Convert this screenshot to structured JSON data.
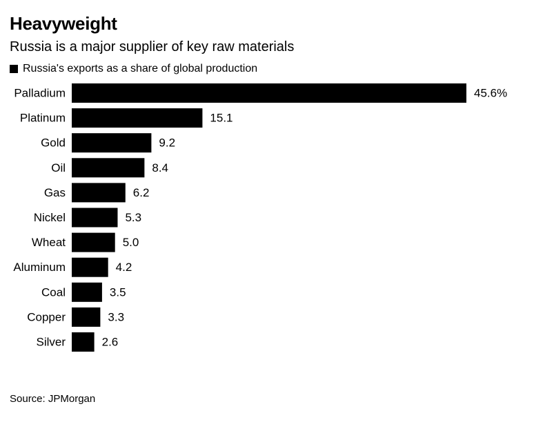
{
  "header": {
    "title": "Heavyweight",
    "subtitle": "Russia is a major supplier of key raw materials"
  },
  "footer": {
    "source": "Source: JPMorgan"
  },
  "colors": {
    "bar": "#000000",
    "text": "#000000",
    "background": "#ffffff"
  },
  "chart_data": {
    "type": "bar",
    "orientation": "horizontal",
    "title": "Heavyweight",
    "subtitle": "Russia is a major supplier of key raw materials",
    "xlabel": "",
    "ylabel": "",
    "xlim": [
      0,
      45.6
    ],
    "grid": false,
    "legend_position": "top-left",
    "categories": [
      "Palladium",
      "Platinum",
      "Gold",
      "Oil",
      "Gas",
      "Nickel",
      "Wheat",
      "Aluminum",
      "Coal",
      "Copper",
      "Silver"
    ],
    "series": [
      {
        "name": "Russia's exports as a share of global production",
        "values": [
          45.6,
          15.1,
          9.2,
          8.4,
          6.2,
          5.3,
          5.0,
          4.2,
          3.5,
          3.3,
          2.6
        ],
        "labels": [
          "45.6%",
          "15.1",
          "9.2",
          "8.4",
          "6.2",
          "5.3",
          "5.0",
          "4.2",
          "3.5",
          "3.3",
          "2.6"
        ]
      }
    ]
  }
}
